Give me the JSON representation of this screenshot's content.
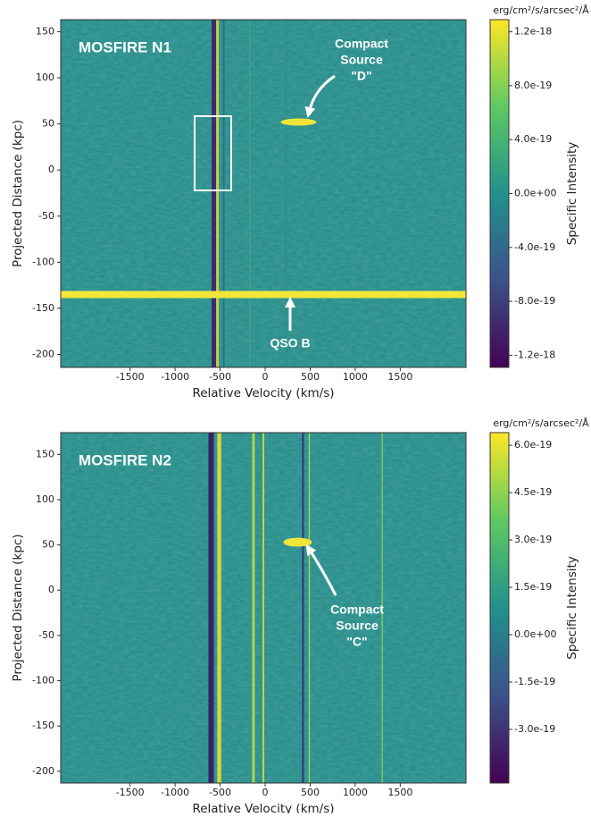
{
  "chart_data": [
    {
      "type": "image",
      "title": "MOSFIRE N1",
      "xlabel": "Relative Velocity (km/s)",
      "ylabel": "Projected Distance (kpc)",
      "xlim": [
        -2270,
        2230
      ],
      "ylim": [
        -214,
        163
      ],
      "xticks": [
        -1500,
        -1000,
        -500,
        0,
        500,
        1000,
        1500
      ],
      "yticks": [
        -200,
        -150,
        -100,
        -50,
        0,
        50,
        100,
        150
      ],
      "colorbar": {
        "label": "Specific Intensity",
        "unit": "erg/cm²/s/arcsec²/Å",
        "colormap": "viridis",
        "lim": [
          -1.29e-18,
          1.29e-18
        ],
        "ticks": [
          -1.2e-18,
          {
            "value": -8e-19,
            "label": "-8.0e-19"
          },
          {
            "value": -4e-19,
            "label": "-4.0e-19"
          },
          {
            "value": 0,
            "label": "0.0e+00"
          },
          {
            "value": 4e-19,
            "label": "4.0e-19"
          },
          {
            "value": 8e-19,
            "label": "8.0e-19"
          },
          1.2e-18
        ]
      },
      "annotations": [
        {
          "lines": [
            "Compact",
            "Source",
            "\"D\""
          ]
        },
        {
          "lines": [
            "QSO B"
          ]
        }
      ]
    },
    {
      "type": "image",
      "title": "MOSFIRE N2",
      "xlabel": "Relative Velocity (km/s)",
      "ylabel": "Projected Distance (kpc)",
      "xlim": [
        -2270,
        2230
      ],
      "ylim": [
        -213,
        174
      ],
      "xticks": [
        -1500,
        -1000,
        -500,
        0,
        500,
        1000,
        1500
      ],
      "yticks": [
        -200,
        -150,
        -100,
        -50,
        0,
        50,
        100,
        150
      ],
      "colorbar": {
        "label": "Specific Intensity",
        "unit": "erg/cm²/s/arcsec²/Å",
        "colormap": "viridis",
        "lim": [
          -4.7e-19,
          6.4e-19
        ],
        "ticks": [
          {
            "value": -3e-19,
            "label": "-3.0e-19"
          },
          {
            "value": -1.5e-19,
            "label": "-1.5e-19"
          },
          {
            "value": 0,
            "label": "0.0e+00"
          },
          {
            "value": 1.5e-19,
            "label": "1.5e-19"
          },
          {
            "value": 3e-19,
            "label": "3.0e-19"
          },
          {
            "value": 4.5e-19,
            "label": "4.5e-19"
          },
          {
            "value": 6e-19,
            "label": "6.0e-19"
          }
        ]
      },
      "annotations": [
        {
          "lines": [
            "Compact",
            "Source",
            "\"C\""
          ]
        }
      ]
    }
  ]
}
